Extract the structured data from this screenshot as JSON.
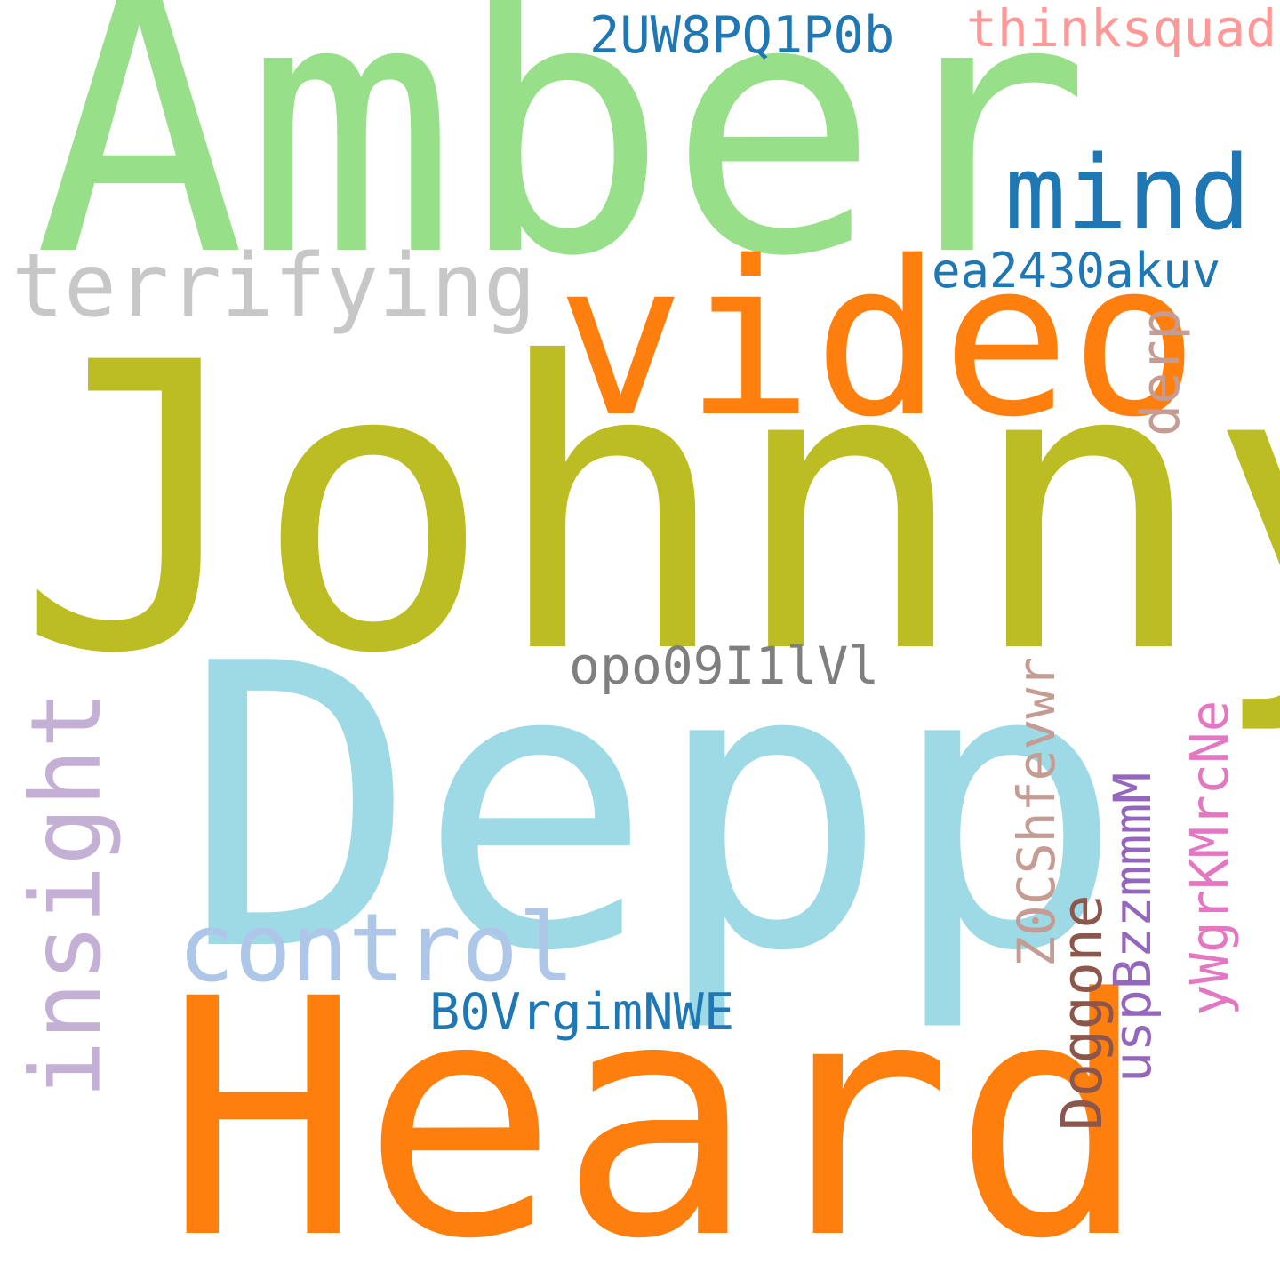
{
  "words": [
    {
      "text": "Johnny",
      "color": "#bcbd22"
    },
    {
      "text": "Depp",
      "color": "#9edae5"
    },
    {
      "text": "Heard",
      "color": "#ff7f0e"
    },
    {
      "text": "Amber",
      "color": "#98df8a"
    },
    {
      "text": "video",
      "color": "#ff7f0e"
    },
    {
      "text": "terrifying",
      "color": "#c7c7c7"
    },
    {
      "text": "mind",
      "color": "#1f77b4"
    },
    {
      "text": "control",
      "color": "#aec7e8"
    },
    {
      "text": "insight",
      "color": "#c5b0d5"
    },
    {
      "text": "ea2430akuv",
      "color": "#1f77b4"
    },
    {
      "text": "2UW8PQ1P0b",
      "color": "#1f77b4"
    },
    {
      "text": "thinksquad",
      "color": "#ff9896"
    },
    {
      "text": "opo09I1lVl",
      "color": "#7f7f7f"
    },
    {
      "text": "derp",
      "color": "#c49c94"
    },
    {
      "text": "Z0CShfevwr",
      "color": "#c49c94"
    },
    {
      "text": "Doggone",
      "color": "#8c564b"
    },
    {
      "text": "uspBzzmmmM",
      "color": "#9467bd"
    },
    {
      "text": "yWgrKMrcNe",
      "color": "#e377c2"
    },
    {
      "text": "B0VrgimNWE",
      "color": "#1f77b4"
    }
  ]
}
